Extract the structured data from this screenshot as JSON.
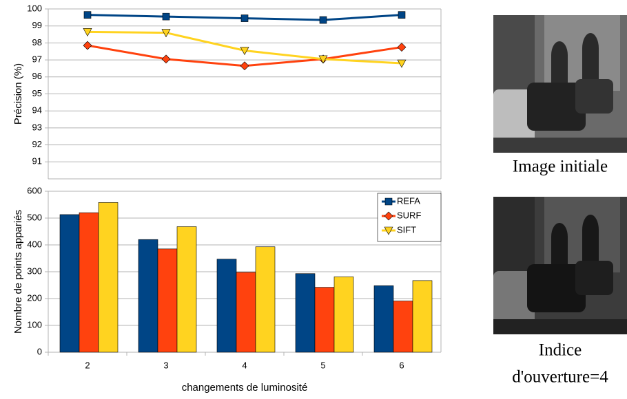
{
  "chart_data": [
    {
      "type": "line",
      "y_label": "Précision (%)",
      "ylim": [
        90,
        100
      ],
      "yticks": [
        91,
        92,
        93,
        94,
        95,
        96,
        97,
        98,
        99,
        100
      ],
      "grid": true,
      "series": [
        {
          "name": "REFA",
          "color": "#004586",
          "marker": "square",
          "values": [
            99.65,
            99.55,
            99.45,
            99.35,
            99.65
          ]
        },
        {
          "name": "SURF",
          "color": "#ff420e",
          "marker": "diamond",
          "values": [
            97.85,
            97.05,
            96.65,
            97.05,
            97.75
          ]
        },
        {
          "name": "SIFT",
          "color": "#ffd320",
          "marker": "triangle-down",
          "values": [
            98.65,
            98.6,
            97.55,
            97.05,
            96.8
          ]
        }
      ]
    },
    {
      "type": "bar",
      "x_label": "changements de luminosité",
      "y_label": "Nombre de points appariés",
      "categories": [
        "2",
        "3",
        "4",
        "5",
        "6"
      ],
      "ylim": [
        0,
        600
      ],
      "yticks": [
        0,
        100,
        200,
        300,
        400,
        500,
        600
      ],
      "grid": true,
      "legend": "upper right",
      "series": [
        {
          "name": "REFA",
          "color": "#004586",
          "marker": "square",
          "values": [
            513,
            420,
            347,
            293,
            248
          ]
        },
        {
          "name": "SURF",
          "color": "#ff420e",
          "marker": "diamond",
          "values": [
            520,
            385,
            298,
            242,
            191
          ]
        },
        {
          "name": "SIFT",
          "color": "#ffd320",
          "marker": "triangle-down",
          "values": [
            558,
            468,
            393,
            281,
            267
          ]
        }
      ]
    }
  ],
  "images": [
    {
      "caption": [
        "Image initiale"
      ]
    },
    {
      "caption": [
        "Indice",
        "d'ouverture=4"
      ]
    }
  ]
}
